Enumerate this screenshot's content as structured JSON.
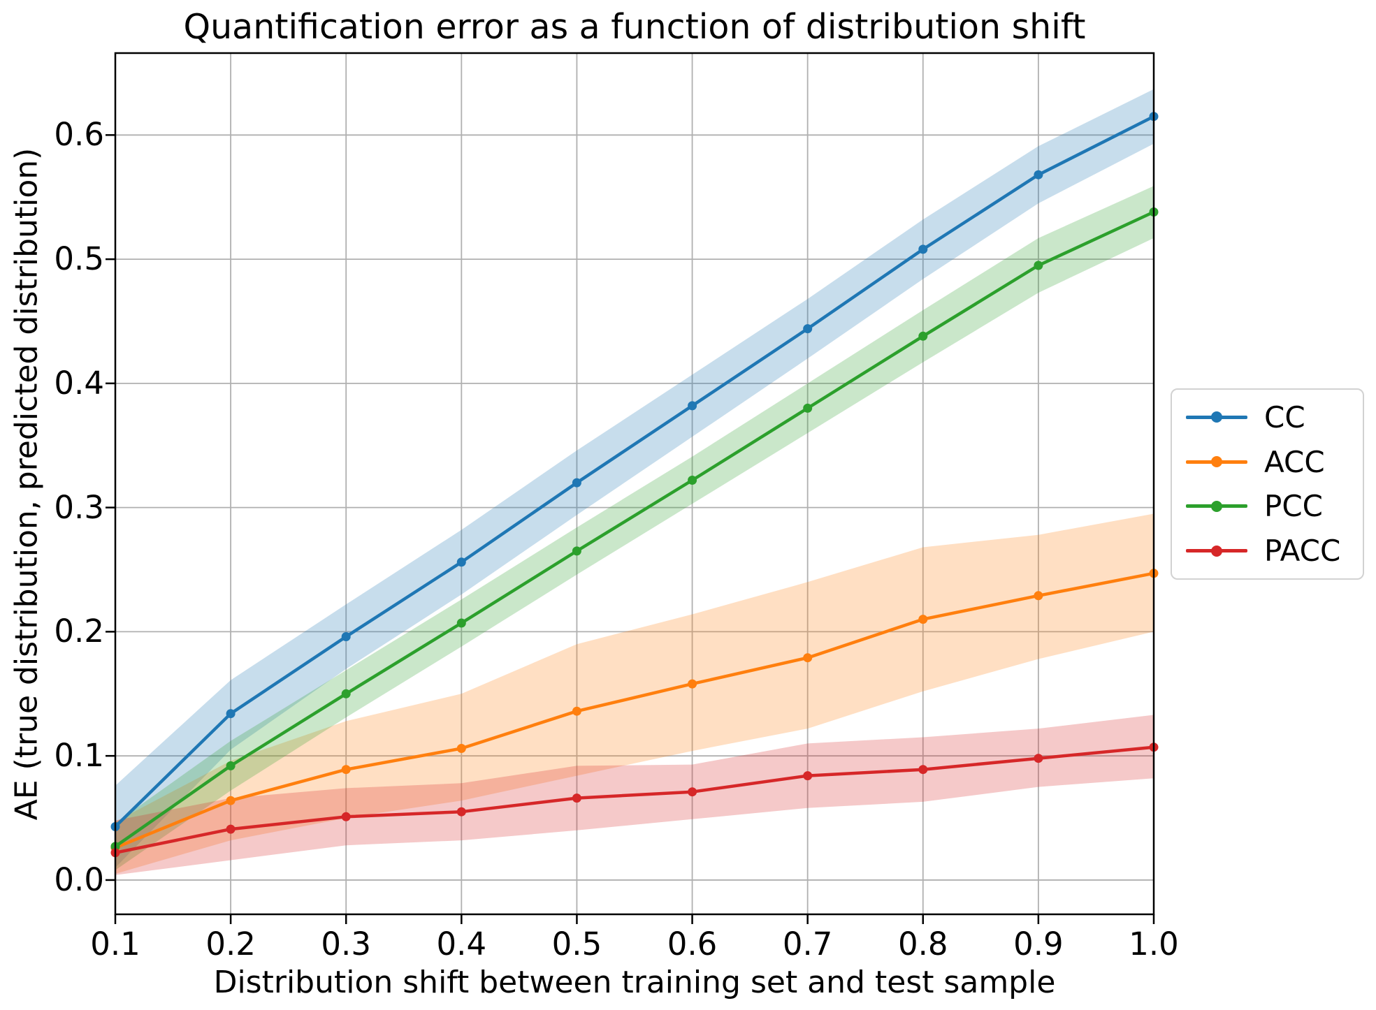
{
  "chart_data": {
    "type": "line",
    "title": "Quantification error as a function of distribution shift",
    "xlabel": "Distribution shift between training set and test sample",
    "ylabel": "AE (true distribution, predicted distribution)",
    "grid": true,
    "grid_color": "#b0b0b0",
    "spine_color": "#000000",
    "background_color": "#ffffff",
    "legend_position": "right-outside",
    "band_alpha": 0.25,
    "xlim": [
      0.1,
      1.0
    ],
    "ylim": [
      -0.0276,
      0.666
    ],
    "xticks": [
      "0.1",
      "0.2",
      "0.3",
      "0.4",
      "0.5",
      "0.6",
      "0.7",
      "0.8",
      "0.9",
      "1.0"
    ],
    "yticks": [
      "0.0",
      "0.1",
      "0.2",
      "0.3",
      "0.4",
      "0.5",
      "0.6"
    ],
    "x": [
      0.1,
      0.2,
      0.3,
      0.4,
      0.5,
      0.6,
      0.7,
      0.8,
      0.9,
      1.0
    ],
    "series": [
      {
        "name": "CC",
        "color": "#1f77b4",
        "values": [
          0.043,
          0.134,
          0.196,
          0.256,
          0.32,
          0.382,
          0.444,
          0.508,
          0.568,
          0.615
        ],
        "band_low": [
          0.01,
          0.105,
          0.17,
          0.23,
          0.294,
          0.357,
          0.42,
          0.484,
          0.545,
          0.593
        ],
        "band_high": [
          0.076,
          0.161,
          0.222,
          0.282,
          0.346,
          0.407,
          0.468,
          0.532,
          0.591,
          0.637
        ]
      },
      {
        "name": "ACC",
        "color": "#ff7f0e",
        "values": [
          0.026,
          0.064,
          0.089,
          0.106,
          0.136,
          0.158,
          0.179,
          0.21,
          0.229,
          0.247
        ],
        "band_low": [
          0.005,
          0.032,
          0.05,
          0.064,
          0.084,
          0.104,
          0.122,
          0.152,
          0.178,
          0.2
        ],
        "band_high": [
          0.047,
          0.096,
          0.128,
          0.15,
          0.19,
          0.214,
          0.24,
          0.268,
          0.278,
          0.295
        ]
      },
      {
        "name": "PCC",
        "color": "#2ca02c",
        "values": [
          0.027,
          0.092,
          0.15,
          0.207,
          0.265,
          0.322,
          0.38,
          0.438,
          0.495,
          0.538
        ],
        "band_low": [
          0.008,
          0.072,
          0.131,
          0.188,
          0.246,
          0.303,
          0.36,
          0.417,
          0.473,
          0.517
        ],
        "band_high": [
          0.046,
          0.112,
          0.169,
          0.226,
          0.284,
          0.341,
          0.4,
          0.459,
          0.517,
          0.559
        ]
      },
      {
        "name": "PACC",
        "color": "#d62728",
        "values": [
          0.022,
          0.041,
          0.051,
          0.055,
          0.066,
          0.071,
          0.084,
          0.089,
          0.098,
          0.107
        ],
        "band_low": [
          0.004,
          0.016,
          0.028,
          0.032,
          0.04,
          0.049,
          0.058,
          0.063,
          0.075,
          0.082
        ],
        "band_high": [
          0.048,
          0.066,
          0.074,
          0.078,
          0.092,
          0.093,
          0.11,
          0.115,
          0.122,
          0.133
        ]
      }
    ]
  }
}
